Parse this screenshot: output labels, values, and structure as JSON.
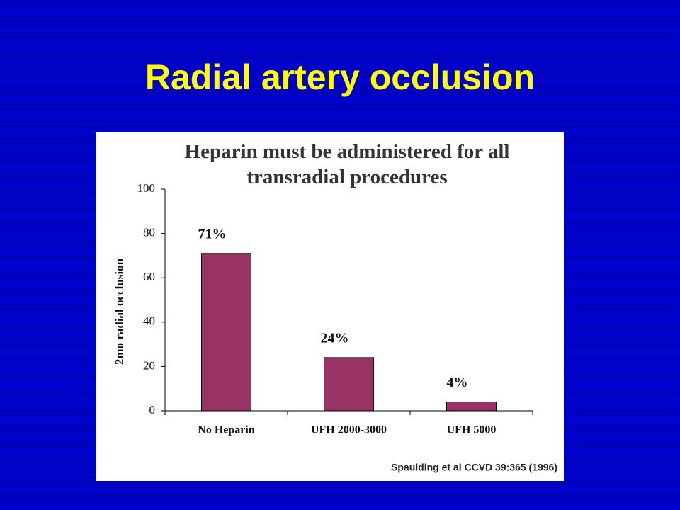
{
  "slide": {
    "title": "Radial artery occlusion"
  },
  "chart_data": {
    "type": "bar",
    "title": "Heparin must be administered for all transradial procedures",
    "y_label": "2mo radial occlusion",
    "categories": [
      "No Heparin",
      "UFH 2000-3000",
      "UFH 5000"
    ],
    "values": [
      71,
      24,
      4
    ],
    "value_labels": [
      "71%",
      "24%",
      "4%"
    ],
    "color": "#993366",
    "ylim": [
      0,
      100
    ],
    "yticks": [
      0,
      20,
      40,
      60,
      80,
      100
    ],
    "grid": false,
    "source": "Spaulding et al CCVD 39:365 (1996)"
  }
}
